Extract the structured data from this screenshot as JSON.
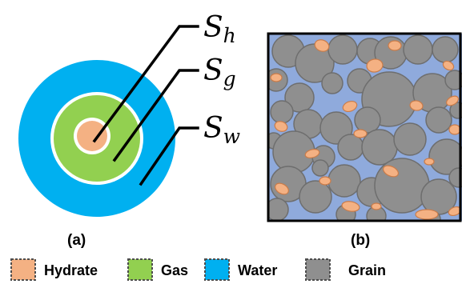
{
  "colors": {
    "hydrate": "#F4B183",
    "gas": "#92D050",
    "water": "#00B0F0",
    "grain": "#8F8F8F",
    "pore_fluid": "#8FAADC",
    "ring_outline": "#FFFFFF",
    "frame": "#000000"
  },
  "panel_a": {
    "label": "(a)",
    "labels": [
      {
        "base": "S",
        "sub": "h"
      },
      {
        "base": "S",
        "sub": "g"
      },
      {
        "base": "S",
        "sub": "w"
      }
    ]
  },
  "panel_b": {
    "label": "(b)"
  },
  "legend": [
    {
      "label": "Hydrate",
      "icon": "hydrate-swatch-icon"
    },
    {
      "label": "Gas",
      "icon": "gas-swatch-icon"
    },
    {
      "label": "Water",
      "icon": "water-swatch-icon"
    },
    {
      "label": "Grain",
      "icon": "grain-swatch-icon"
    }
  ]
}
